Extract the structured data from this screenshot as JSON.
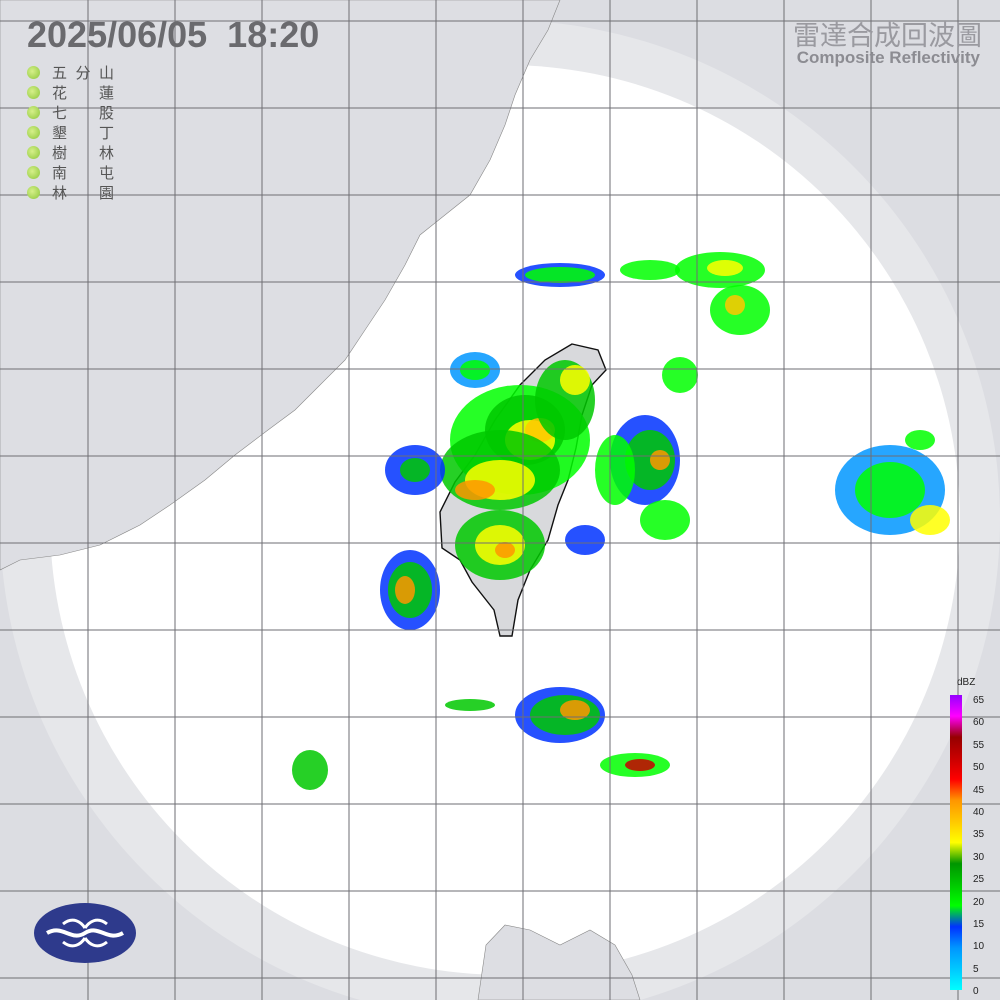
{
  "header": {
    "timestamp": "2025/06/05  18:20",
    "title_zh": "雷達合成回波圖",
    "title_en": "Composite Reflectivity"
  },
  "stations": [
    {
      "a": "五",
      "b": "分",
      "c": "山"
    },
    {
      "a": "花",
      "b": "",
      "c": "蓮"
    },
    {
      "a": "七",
      "b": "",
      "c": "股"
    },
    {
      "a": "墾",
      "b": "",
      "c": "丁"
    },
    {
      "a": "樹",
      "b": "",
      "c": "林"
    },
    {
      "a": "南",
      "b": "",
      "c": "屯"
    },
    {
      "a": "林",
      "b": "",
      "c": "園"
    }
  ],
  "station_status_color": "#8cc63a",
  "colorbar": {
    "unit": "dBZ",
    "labels": [
      "65",
      "60",
      "55",
      "50",
      "45",
      "40",
      "35",
      "30",
      "25",
      "20",
      "15",
      "10",
      "5",
      "0"
    ],
    "colors": [
      "#00ffff",
      "#00c8ff",
      "#0096ff",
      "#0032ff",
      "#00ff00",
      "#00c800",
      "#009600",
      "#ffff00",
      "#ffc800",
      "#ff9600",
      "#ff0000",
      "#c80000",
      "#960000",
      "#ff00ff",
      "#9600ff"
    ]
  },
  "map_colors": {
    "land": "#dddee3",
    "coverage": "#ffffff",
    "taiwan_land": "#d8d9dc",
    "grid": "#6e6e73"
  },
  "logo": {
    "name": "cwa-logo"
  }
}
